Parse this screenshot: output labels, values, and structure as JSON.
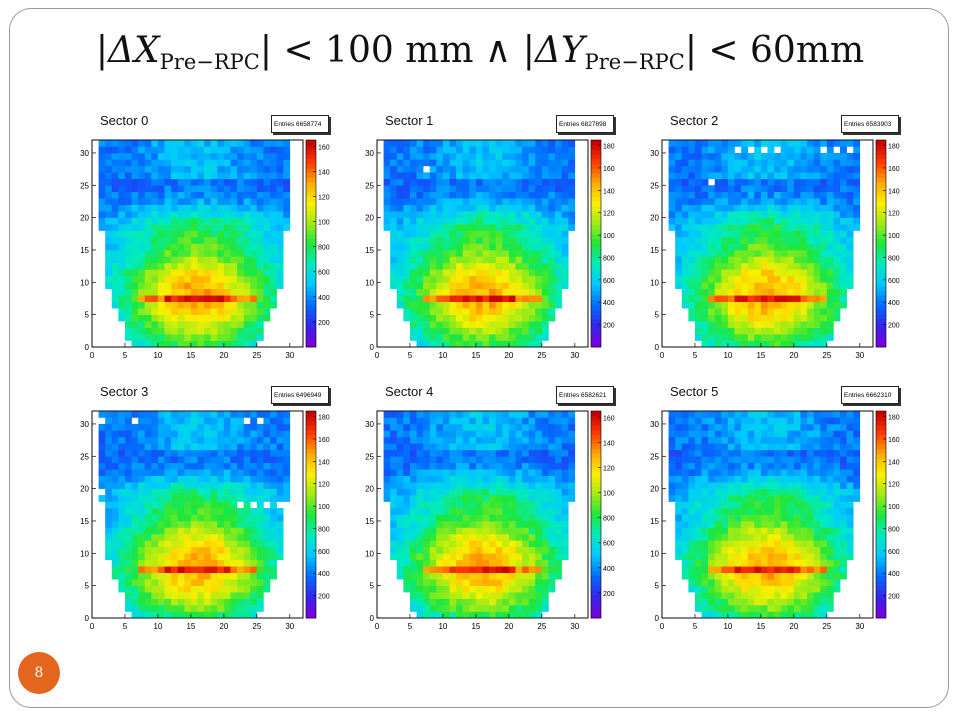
{
  "title": {
    "delta_x": "ΔX",
    "delta_x_sub": "Pre−RPC",
    "mid": " < 100 mm ∧ ",
    "delta_y": "ΔY",
    "delta_y_sub": "Pre−RPC",
    "end": " < 60mm"
  },
  "page_number": "8",
  "chart_data": [
    {
      "type": "heatmap",
      "title": "Sector 0",
      "entries_label": "Entries 6658774",
      "xlim": [
        0,
        32
      ],
      "ylim": [
        0,
        32
      ],
      "x_ticks": [
        "0",
        "5",
        "10",
        "15",
        "20",
        "25",
        "30"
      ],
      "y_ticks": [
        "0",
        "5",
        "10",
        "15",
        "20",
        "25",
        "30"
      ],
      "z_ticks": [
        "200",
        "400",
        "600",
        "800",
        "100",
        "120",
        "140",
        "160"
      ]
    },
    {
      "type": "heatmap",
      "title": "Sector 1",
      "entries_label": "Entries 6827898",
      "xlim": [
        0,
        32
      ],
      "ylim": [
        0,
        32
      ],
      "x_ticks": [
        "0",
        "5",
        "10",
        "15",
        "20",
        "25",
        "30"
      ],
      "y_ticks": [
        "0",
        "5",
        "10",
        "15",
        "20",
        "25",
        "30"
      ],
      "z_ticks": [
        "200",
        "400",
        "600",
        "800",
        "100",
        "120",
        "140",
        "160",
        "180"
      ]
    },
    {
      "type": "heatmap",
      "title": "Sector 2",
      "entries_label": "Entries 6583903",
      "xlim": [
        0,
        32
      ],
      "ylim": [
        0,
        32
      ],
      "x_ticks": [
        "0",
        "5",
        "10",
        "15",
        "20",
        "25",
        "30"
      ],
      "y_ticks": [
        "0",
        "5",
        "10",
        "15",
        "20",
        "25",
        "30"
      ],
      "z_ticks": [
        "200",
        "400",
        "600",
        "800",
        "100",
        "120",
        "140",
        "160",
        "180"
      ]
    },
    {
      "type": "heatmap",
      "title": "Sector 3",
      "entries_label": "Entries 6496949",
      "xlim": [
        0,
        32
      ],
      "ylim": [
        0,
        32
      ],
      "x_ticks": [
        "0",
        "5",
        "10",
        "15",
        "20",
        "25",
        "30"
      ],
      "y_ticks": [
        "0",
        "5",
        "10",
        "15",
        "20",
        "25",
        "30"
      ],
      "z_ticks": [
        "200",
        "400",
        "600",
        "800",
        "100",
        "120",
        "140",
        "160",
        "180"
      ]
    },
    {
      "type": "heatmap",
      "title": "Sector 4",
      "entries_label": "Entries 6582621",
      "xlim": [
        0,
        32
      ],
      "ylim": [
        0,
        32
      ],
      "x_ticks": [
        "0",
        "5",
        "10",
        "15",
        "20",
        "25",
        "30"
      ],
      "y_ticks": [
        "0",
        "5",
        "10",
        "15",
        "20",
        "25",
        "30"
      ],
      "z_ticks": [
        "200",
        "400",
        "600",
        "800",
        "100",
        "120",
        "140",
        "160"
      ]
    },
    {
      "type": "heatmap",
      "title": "Sector 5",
      "entries_label": "Entries 6662310",
      "xlim": [
        0,
        32
      ],
      "ylim": [
        0,
        32
      ],
      "x_ticks": [
        "0",
        "5",
        "10",
        "15",
        "20",
        "25",
        "30"
      ],
      "y_ticks": [
        "0",
        "5",
        "10",
        "15",
        "20",
        "25",
        "30"
      ],
      "z_ticks": [
        "200",
        "400",
        "600",
        "800",
        "100",
        "120",
        "140",
        "160",
        "180"
      ]
    }
  ]
}
